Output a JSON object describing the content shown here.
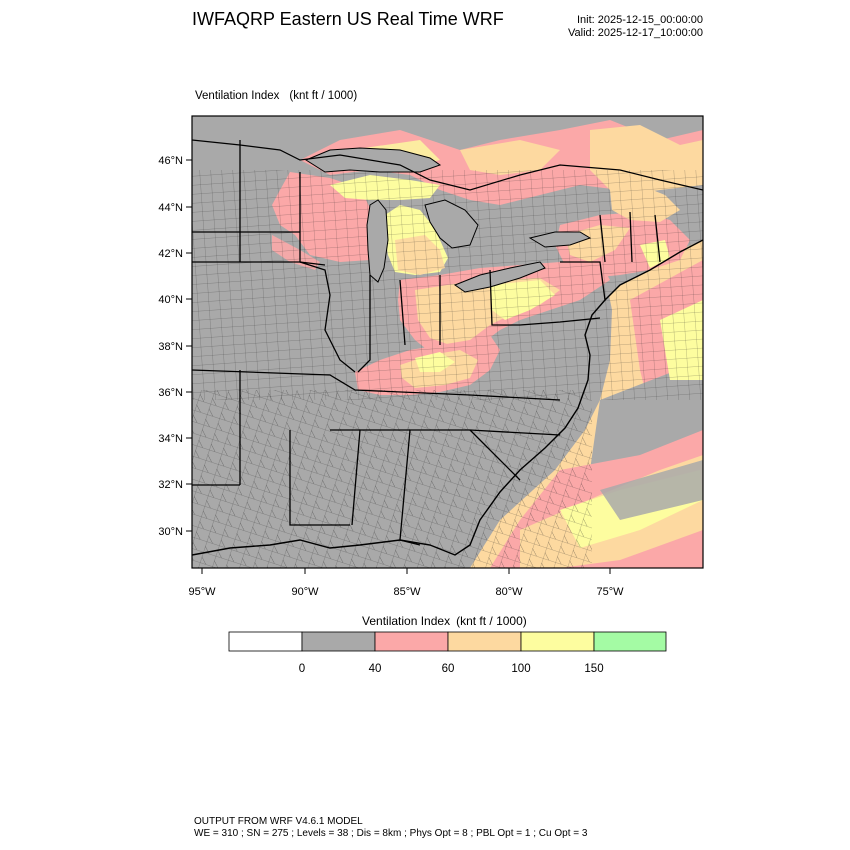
{
  "header": {
    "title": "IWFAQRP Eastern US Real Time WRF",
    "init": "Init: 2025-12-15_00:00:00",
    "valid": "Valid: 2025-12-17_10:00:00"
  },
  "plot": {
    "field": "Ventilation Index",
    "units": "(knt ft / 1000)"
  },
  "map": {
    "projection": "lambert-conformal",
    "lat_labels": [
      "46°N",
      "44°N",
      "42°N",
      "40°N",
      "38°N",
      "36°N",
      "34°N",
      "32°N",
      "30°N"
    ],
    "lon_labels": [
      "95°W",
      "90°W",
      "85°W",
      "80°W",
      "75°W"
    ],
    "boundaries": [
      "state-lines",
      "county-lines",
      "coastlines",
      "great-lakes"
    ],
    "region": "Eastern United States"
  },
  "colorbar": {
    "title": "Ventilation Index",
    "units": "(knt ft / 1000)",
    "ticks": [
      "0",
      "40",
      "60",
      "100",
      "150"
    ],
    "bins": [
      {
        "color": "#ffffff"
      },
      {
        "color": "#a9a9a9"
      },
      {
        "color": "#fba8a8"
      },
      {
        "color": "#fdd9a0"
      },
      {
        "color": "#fdfd9f"
      },
      {
        "color": "#a4fba4"
      }
    ]
  },
  "footer": {
    "line1": "OUTPUT FROM WRF V4.6.1 MODEL",
    "line2": "WE = 310 ; SN = 275 ; Levels = 38 ; Dis = 8km ; Phys Opt = 8 ; PBL Opt = 1 ; Cu Opt = 3"
  }
}
